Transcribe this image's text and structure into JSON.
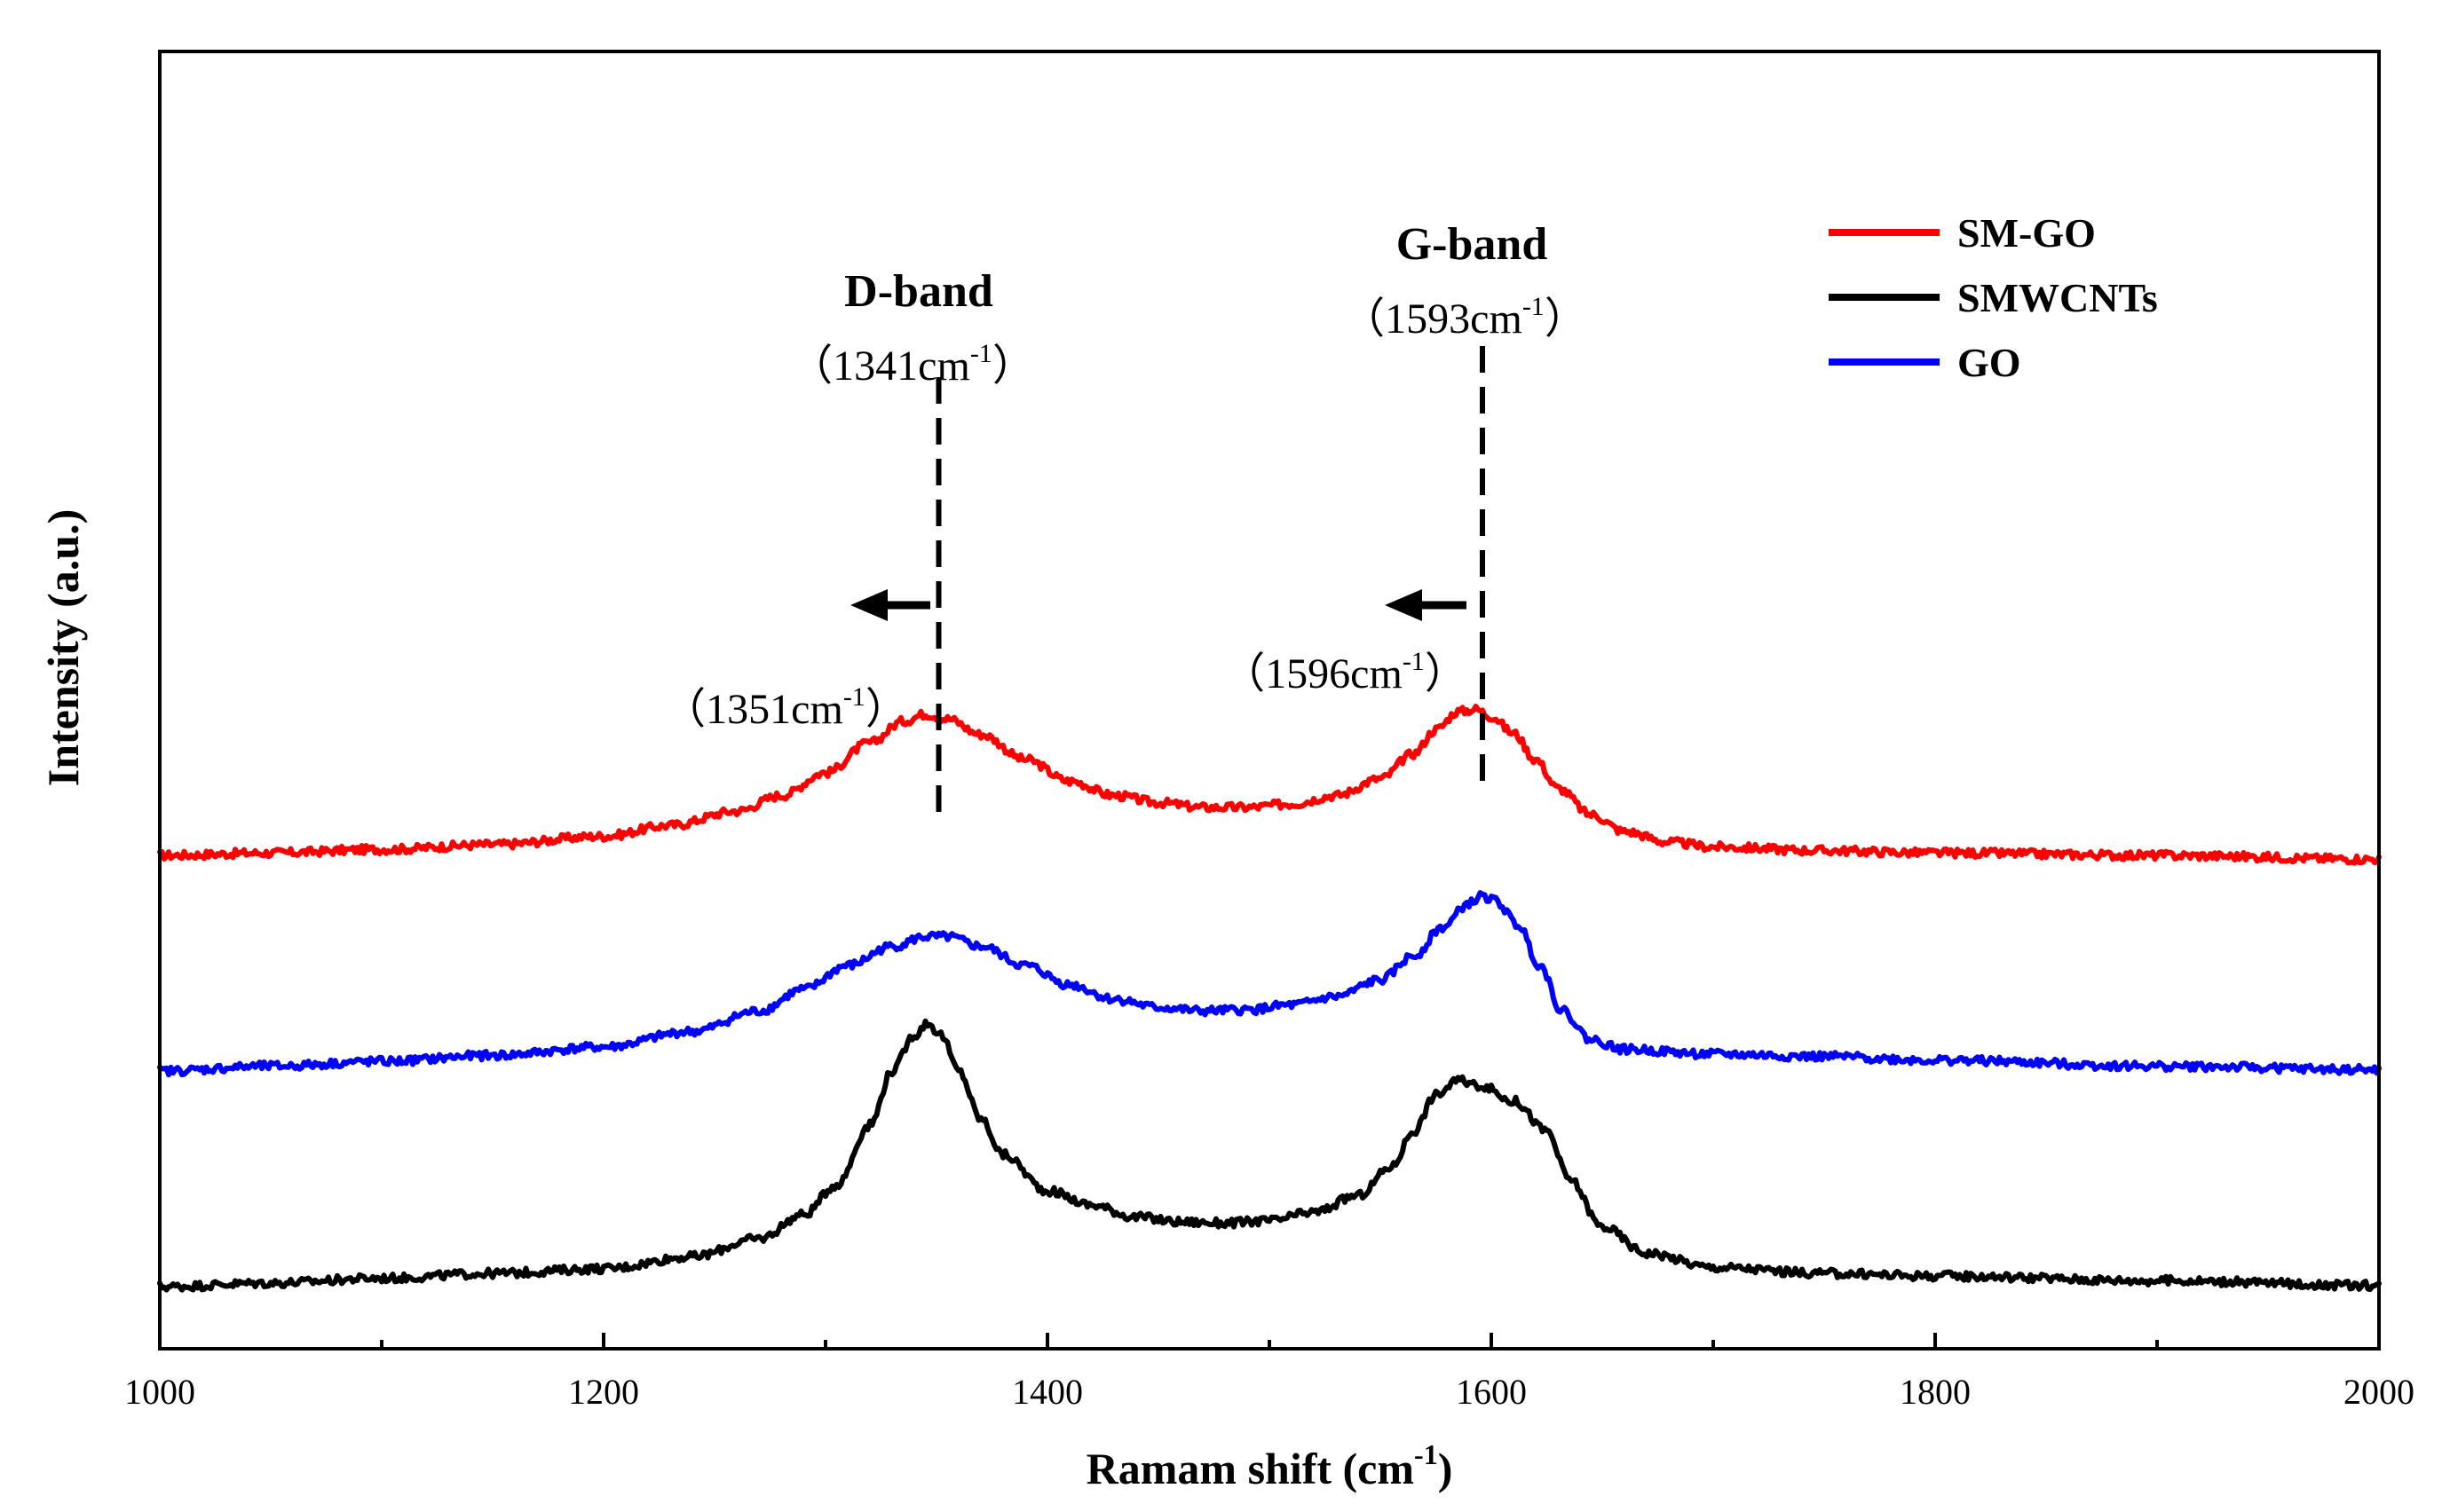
{
  "chart_data": {
    "type": "line",
    "xlabel": "Ramam shift (cm",
    "xlabel_sup": "-1",
    "xlabel_close": ")",
    "ylabel": "Intensity (a.u.)",
    "xlim": [
      1000,
      2000
    ],
    "xticks": [
      1000,
      1200,
      1400,
      1600,
      1800,
      2000
    ],
    "minor_xticks": [
      1100,
      1300,
      1500,
      1700,
      1900
    ],
    "yticks_shown": false,
    "grid": false,
    "legend": "top-right",
    "series": [
      {
        "name": "SM-GO",
        "color": "#ff0000",
        "offset": 3.6,
        "points": [
          [
            1000,
            0.0
          ],
          [
            1050,
            0.02
          ],
          [
            1100,
            0.05
          ],
          [
            1150,
            0.09
          ],
          [
            1200,
            0.16
          ],
          [
            1230,
            0.25
          ],
          [
            1260,
            0.37
          ],
          [
            1280,
            0.5
          ],
          [
            1300,
            0.69
          ],
          [
            1320,
            0.94
          ],
          [
            1335,
            1.12
          ],
          [
            1345,
            1.18
          ],
          [
            1355,
            1.14
          ],
          [
            1370,
            1.01
          ],
          [
            1390,
            0.8
          ],
          [
            1410,
            0.62
          ],
          [
            1430,
            0.5
          ],
          [
            1450,
            0.44
          ],
          [
            1470,
            0.4
          ],
          [
            1490,
            0.4
          ],
          [
            1510,
            0.43
          ],
          [
            1530,
            0.5
          ],
          [
            1550,
            0.64
          ],
          [
            1565,
            0.85
          ],
          [
            1575,
            1.05
          ],
          [
            1585,
            1.2
          ],
          [
            1593,
            1.22
          ],
          [
            1600,
            1.16
          ],
          [
            1610,
            1.02
          ],
          [
            1620,
            0.8
          ],
          [
            1630,
            0.56
          ],
          [
            1645,
            0.34
          ],
          [
            1660,
            0.2
          ],
          [
            1680,
            0.11
          ],
          [
            1700,
            0.07
          ],
          [
            1750,
            0.04
          ],
          [
            1800,
            0.02
          ],
          [
            1900,
            0.0
          ],
          [
            2000,
            -0.03
          ]
        ]
      },
      {
        "name": "SMWCNTs",
        "color": "#000000",
        "offset": 0.0,
        "points": [
          [
            1000,
            0.0
          ],
          [
            1050,
            0.03
          ],
          [
            1100,
            0.07
          ],
          [
            1150,
            0.11
          ],
          [
            1200,
            0.15
          ],
          [
            1240,
            0.25
          ],
          [
            1270,
            0.4
          ],
          [
            1290,
            0.6
          ],
          [
            1305,
            0.85
          ],
          [
            1320,
            1.35
          ],
          [
            1330,
            1.8
          ],
          [
            1340,
            2.1
          ],
          [
            1346,
            2.2
          ],
          [
            1352,
            2.1
          ],
          [
            1360,
            1.8
          ],
          [
            1370,
            1.4
          ],
          [
            1380,
            1.1
          ],
          [
            1400,
            0.8
          ],
          [
            1420,
            0.68
          ],
          [
            1440,
            0.58
          ],
          [
            1460,
            0.54
          ],
          [
            1480,
            0.53
          ],
          [
            1500,
            0.55
          ],
          [
            1520,
            0.62
          ],
          [
            1540,
            0.76
          ],
          [
            1555,
            1.0
          ],
          [
            1565,
            1.3
          ],
          [
            1575,
            1.6
          ],
          [
            1585,
            1.72
          ],
          [
            1595,
            1.68
          ],
          [
            1610,
            1.55
          ],
          [
            1625,
            1.3
          ],
          [
            1635,
            0.9
          ],
          [
            1650,
            0.5
          ],
          [
            1670,
            0.28
          ],
          [
            1700,
            0.16
          ],
          [
            1750,
            0.11
          ],
          [
            1800,
            0.09
          ],
          [
            1900,
            0.05
          ],
          [
            2000,
            0.01
          ]
        ]
      },
      {
        "name": "GO",
        "color": "#0000ff",
        "offset": 1.8,
        "points": [
          [
            1000,
            0.0
          ],
          [
            1050,
            0.04
          ],
          [
            1100,
            0.08
          ],
          [
            1150,
            0.13
          ],
          [
            1200,
            0.2
          ],
          [
            1240,
            0.33
          ],
          [
            1270,
            0.5
          ],
          [
            1290,
            0.68
          ],
          [
            1310,
            0.88
          ],
          [
            1330,
            1.04
          ],
          [
            1345,
            1.12
          ],
          [
            1355,
            1.12
          ],
          [
            1370,
            1.04
          ],
          [
            1390,
            0.88
          ],
          [
            1410,
            0.72
          ],
          [
            1430,
            0.6
          ],
          [
            1450,
            0.53
          ],
          [
            1470,
            0.5
          ],
          [
            1490,
            0.51
          ],
          [
            1510,
            0.55
          ],
          [
            1530,
            0.62
          ],
          [
            1550,
            0.76
          ],
          [
            1565,
            0.96
          ],
          [
            1578,
            1.2
          ],
          [
            1590,
            1.4
          ],
          [
            1596,
            1.46
          ],
          [
            1602,
            1.42
          ],
          [
            1612,
            1.22
          ],
          [
            1622,
            0.88
          ],
          [
            1632,
            0.5
          ],
          [
            1645,
            0.26
          ],
          [
            1660,
            0.18
          ],
          [
            1700,
            0.14
          ],
          [
            1750,
            0.12
          ],
          [
            1800,
            0.09
          ],
          [
            1900,
            0.04
          ],
          [
            2000,
            0.01
          ]
        ]
      }
    ],
    "dashed_lines_x": [
      1351,
      1596
    ],
    "annotations": {
      "d_band_title": "D-band",
      "d_band_upper_label": "（1341cm",
      "d_band_upper_sup": "-1",
      "d_band_upper_close": "）",
      "g_band_title": "G-band",
      "g_band_upper_label": "（1593cm",
      "g_band_upper_sup": "-1",
      "g_band_upper_close": "）",
      "d_band_lower_label": "（1351cm",
      "d_band_lower_sup": "-1",
      "d_band_lower_close": "）",
      "g_band_lower_label": "（1596cm",
      "g_band_lower_sup": "-1",
      "g_band_lower_close": "）"
    }
  }
}
